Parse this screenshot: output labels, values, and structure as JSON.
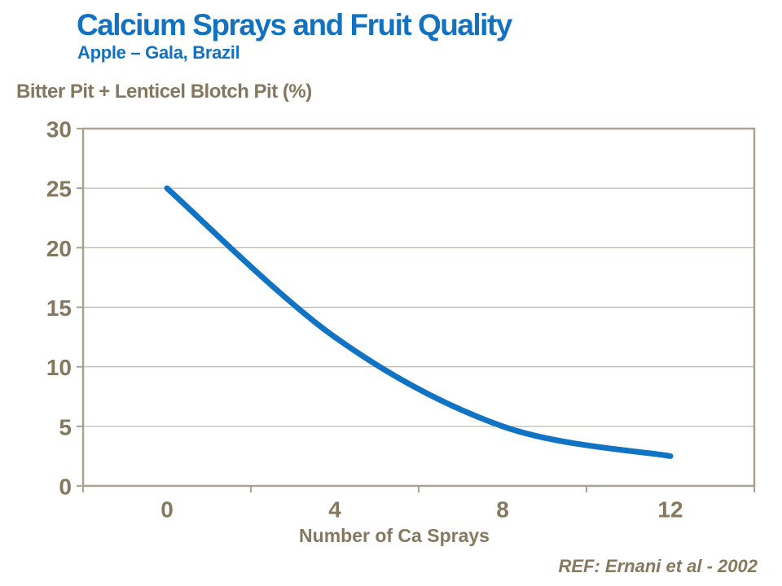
{
  "slide": {
    "title": "Calcium Sprays and Fruit Quality",
    "subtitle": "Apple – Gala, Brazil",
    "ref": "REF: Ernani et al - 2002"
  },
  "chart_data": {
    "type": "line",
    "title": "Calcium Sprays and Fruit Quality",
    "subtitle": "Apple – Gala, Brazil",
    "ylabel": "Bitter Pit + Lenticel Blotch Pit (%)",
    "xlabel": "Number of Ca Sprays",
    "x_categories": [
      "0",
      "4",
      "8",
      "12"
    ],
    "x_values": [
      0,
      4,
      8,
      12
    ],
    "values": [
      25,
      12.5,
      5,
      2.5
    ],
    "ylim": [
      0,
      30
    ],
    "yticks": [
      0,
      5,
      10,
      15,
      20,
      25,
      30
    ],
    "ytick_labels": [
      "0",
      "5",
      "10",
      "15",
      "20",
      "25",
      "30"
    ],
    "grid": "horizontal",
    "legend": "none",
    "smooth": true,
    "line_color": "#1173C4"
  },
  "colors": {
    "accent_blue": "#1172C2",
    "text_brown": "#86785F",
    "axis": "#A9A193",
    "gridline": "#B9B1A4",
    "background": "#FFFFFF"
  }
}
